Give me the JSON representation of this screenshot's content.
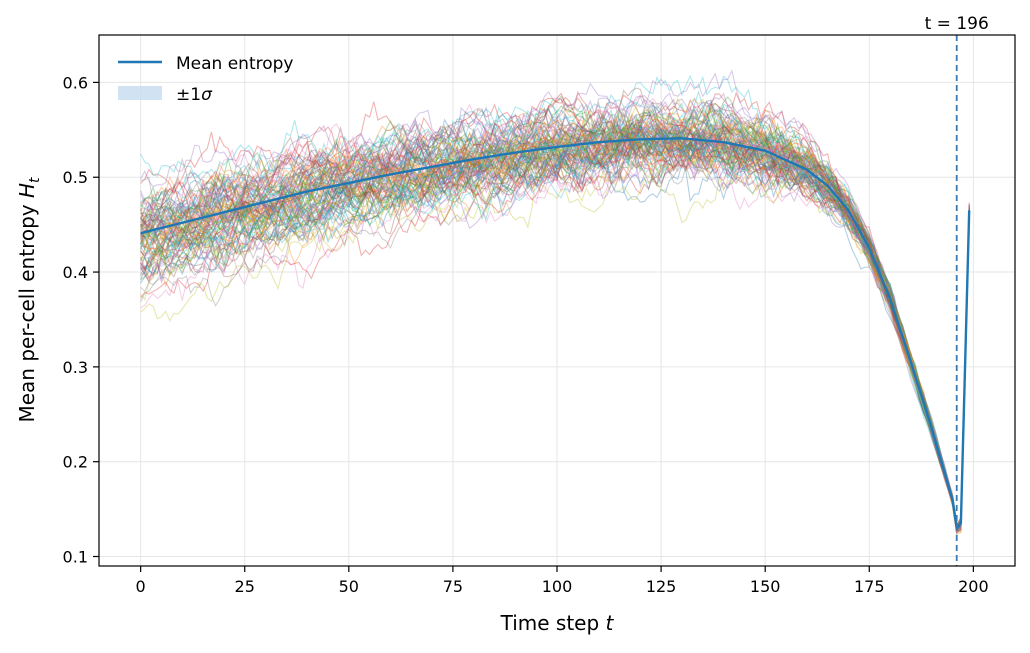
{
  "chart_data": {
    "type": "line",
    "title": "",
    "xlabel": "Time step t",
    "ylabel": "Mean per-cell entropy H_t",
    "xlim": [
      -10,
      210
    ],
    "ylim": [
      0.09,
      0.65
    ],
    "x_ticks": [
      0,
      25,
      50,
      75,
      100,
      125,
      150,
      175,
      200
    ],
    "y_ticks": [
      0.1,
      0.2,
      0.3,
      0.4,
      0.5,
      0.6
    ],
    "x_tick_labels": [
      "0",
      "25",
      "50",
      "75",
      "100",
      "125",
      "150",
      "175",
      "200"
    ],
    "y_tick_labels": [
      "0.1",
      "0.2",
      "0.3",
      "0.4",
      "0.5",
      "0.6"
    ],
    "grid": true,
    "legend": {
      "placement": "top-left",
      "entries": [
        {
          "label": "Mean entropy",
          "kind": "line",
          "color": "#1f77b4"
        },
        {
          "label": "±1σ",
          "kind": "band",
          "color": "#c6dbef"
        }
      ]
    },
    "mean_series": {
      "name": "Mean entropy",
      "color": "#1f77b4",
      "x": [
        0,
        10,
        20,
        30,
        40,
        50,
        60,
        70,
        80,
        90,
        100,
        110,
        120,
        130,
        140,
        150,
        160,
        165,
        170,
        175,
        180,
        185,
        190,
        195,
        196,
        197,
        198,
        199
      ],
      "y": [
        0.441,
        0.452,
        0.463,
        0.474,
        0.485,
        0.494,
        0.503,
        0.511,
        0.519,
        0.526,
        0.532,
        0.537,
        0.54,
        0.541,
        0.537,
        0.528,
        0.508,
        0.491,
        0.465,
        0.425,
        0.372,
        0.305,
        0.235,
        0.16,
        0.13,
        0.135,
        0.3,
        0.465
      ]
    },
    "individual_runs": {
      "count": 100,
      "spread_at_t0": [
        0.35,
        0.51
      ],
      "spread_at_t125": [
        0.48,
        0.61
      ],
      "alpha": 0.35
    },
    "annotations": [
      {
        "text": "t = 196",
        "x": 196,
        "style": "dashed-vertical-line",
        "color": "#3a78b0"
      }
    ]
  }
}
